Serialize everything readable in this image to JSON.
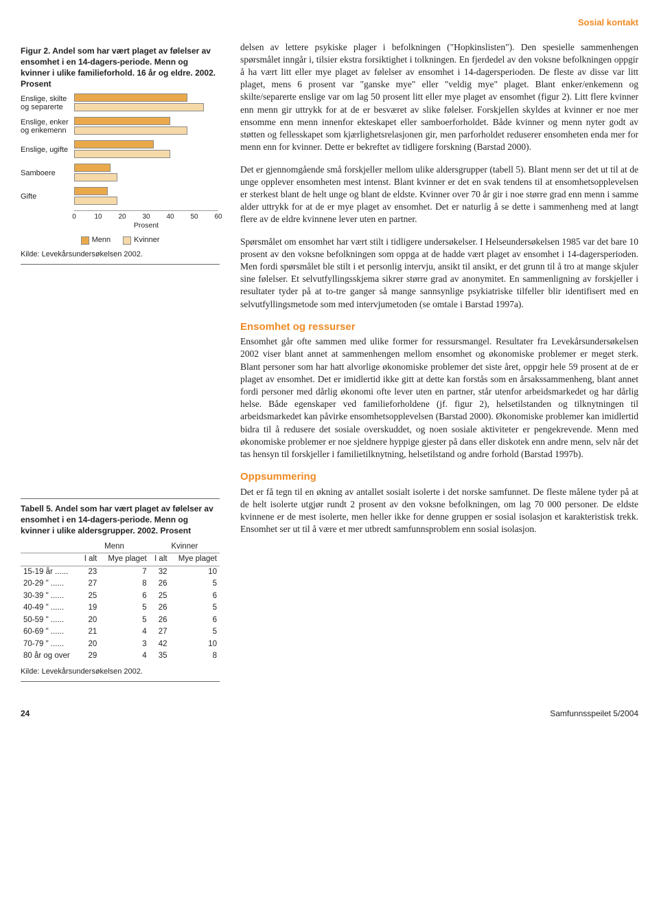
{
  "header_tag": "Sosial kontakt",
  "figure": {
    "caption": "Figur 2. Andel som har vært plaget av følelser av ensomhet i en 14-dagers-periode. Menn og kvinner i ulike familieforhold. 16 år og eldre. 2002. Prosent",
    "type": "bar",
    "categories": [
      "Enslige, skilte og separerte",
      "Enslige, enker og enkemenn",
      "Enslige, ugifte",
      "Samboere",
      "Gifte"
    ],
    "series": [
      {
        "name": "Menn",
        "color": "#e9a94a",
        "values": [
          47,
          40,
          33,
          15,
          14
        ]
      },
      {
        "name": "Kvinner",
        "color": "#f5d9a8",
        "values": [
          54,
          47,
          40,
          18,
          18
        ]
      }
    ],
    "xlim": [
      0,
      60
    ],
    "xtick_step": 10,
    "xticks": [
      0,
      10,
      20,
      30,
      40,
      50,
      60
    ],
    "xlabel": "Prosent",
    "legend_labels": [
      "Menn",
      "Kvinner"
    ],
    "bar_border": "#888888",
    "source": "Kilde: Levekårsundersøkelsen 2002."
  },
  "table": {
    "caption": "Tabell 5. Andel som har vært plaget av følelser av ensomhet i en 14-dagers-periode. Menn og kvinner i ulike aldersgrupper. 2002. Prosent",
    "group_headers": [
      "Menn",
      "Kvinner"
    ],
    "sub_headers": [
      "I alt",
      "Mye plaget",
      "I alt",
      "Mye plaget"
    ],
    "rows": [
      {
        "label": "15-19 år ......",
        "cells": [
          23,
          7,
          32,
          10
        ]
      },
      {
        "label": "20-29 \"  ......",
        "cells": [
          27,
          8,
          26,
          5
        ]
      },
      {
        "label": "30-39 \"  ......",
        "cells": [
          25,
          6,
          25,
          6
        ]
      },
      {
        "label": "40-49 \"  ......",
        "cells": [
          19,
          5,
          26,
          5
        ]
      },
      {
        "label": "50-59 \"  ......",
        "cells": [
          20,
          5,
          26,
          6
        ]
      },
      {
        "label": "60-69 \"  ......",
        "cells": [
          21,
          4,
          27,
          5
        ]
      },
      {
        "label": "70-79 \"  ......",
        "cells": [
          20,
          3,
          42,
          10
        ]
      },
      {
        "label": "80 år og over",
        "cells": [
          29,
          4,
          35,
          8
        ]
      }
    ],
    "source": "Kilde: Levekårsundersøkelsen 2002."
  },
  "paragraphs": {
    "p1": "delsen av lettere psykiske plager i befolkningen (\"Hopkinslisten\"). Den spesielle sammenhengen spørsmålet inngår i, tilsier ekstra forsiktighet i tolkningen. En fjerdedel av den voksne befolkningen oppgir å ha vært litt eller mye plaget av følelser av ensomhet i 14-dagersperioden. De fleste av disse var litt plaget, mens 6 prosent var \"ganske mye\" eller \"veldig mye\" plaget. Blant enker/enkemenn og skilte/separerte enslige var om lag 50 prosent litt eller mye plaget av ensomhet (figur 2). Litt flere kvinner enn menn gir uttrykk for at de er besværet av slike følelser. Forskjellen skyldes at kvinner er noe mer ensomme enn menn innenfor ekteskapet eller samboerforholdet. Både kvinner og menn nyter godt av støtten og fellesskapet som kjærlighetsrelasjonen gir, men parforholdet reduserer ensomheten enda mer for menn enn for kvinner. Dette er bekreftet av tidligere forskning (Barstad 2000).",
    "p2": "Det er gjennomgående små forskjeller mellom ulike aldersgrupper (tabell 5). Blant menn ser det ut til at de unge opplever ensomheten mest intenst. Blant kvinner er det en svak tendens til at ensomhetsopplevelsen er sterkest blant de helt unge og blant de eldste. Kvinner over 70 år gir i noe større grad enn menn i samme alder uttrykk for at de er mye plaget av ensomhet. Det er naturlig å se dette i sammenheng med at langt flere av de eldre kvinnene lever uten en partner.",
    "p3": "Spørsmålet om ensomhet har vært stilt i tidligere undersøkelser. I Helseundersøkelsen 1985 var det bare 10 prosent av den voksne befolkningen som oppga at de hadde vært plaget av ensomhet i 14-dagersperioden. Men fordi spørsmålet ble stilt i et personlig intervju, ansikt til ansikt, er det grunn til å tro at mange skjuler sine følelser. Et selvutfyllingsskjema sikrer større grad av anonymitet. En sammenligning av forskjeller i resultater tyder på at to-tre ganger så mange sannsynlige psykiatriske tilfeller blir identifisert med en selvutfyllingsmetode som med intervjumetoden (se omtale i Barstad 1997a).",
    "h1": "Ensomhet og ressurser",
    "p4": "Ensomhet går ofte sammen med ulike former for ressursmangel. Resultater fra Levekårsundersøkelsen 2002 viser blant annet at sammenhengen mellom ensomhet og økonomiske problemer er meget sterk. Blant personer som har hatt alvorlige økonomiske problemer det siste året, oppgir hele 59 prosent at de er plaget av ensomhet. Det er imidlertid ikke gitt at dette kan forstås som en årsakssammenheng, blant annet fordi personer med dårlig økonomi ofte lever uten en partner, står utenfor arbeidsmarkedet og har dårlig helse. Både egenskaper ved familieforholdene (jf. figur 2), helsetilstanden og tilknytningen til arbeidsmarkedet kan påvirke ensomhetsopplevelsen (Barstad 2000). Økonomiske problemer kan imidlertid bidra til å redusere det sosiale overskuddet, og noen sosiale aktiviteter er pengekrevende. Menn med økonomiske problemer er noe sjeldnere hyppige gjester på dans eller diskotek enn andre menn, selv når det tas hensyn til forskjeller i familietilknytning, helsetilstand og andre forhold (Barstad 1997b).",
    "h2": "Oppsummering",
    "p5": "Det er få tegn til en økning av antallet sosialt isolerte i det norske samfunnet. De fleste målene tyder på at de helt isolerte utgjør rundt 2 prosent av den voksne befolkningen, om lag 70 000 personer. De eldste kvinnene er de mest isolerte, men heller ikke for denne gruppen er sosial isolasjon et karakteristisk trekk. Ensomhet ser ut til å være et mer utbredt samfunnsproblem enn sosial isolasjon."
  },
  "footer": {
    "page": "24",
    "journal": "Samfunnsspeilet 5/2004"
  }
}
